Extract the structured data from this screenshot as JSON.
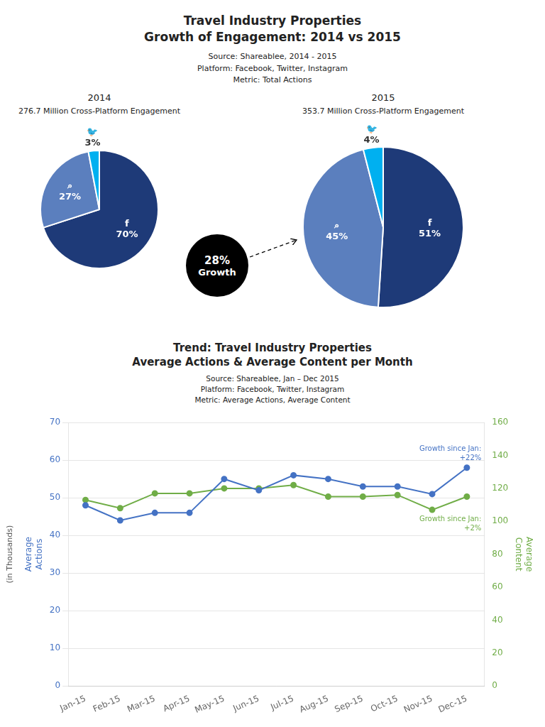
{
  "title": "Travel Industry Properties\nGrowth of Engagement: 2014 vs 2015",
  "subtitle": "Source: Shareablee, 2014 - 2015\nPlatform: Facebook, Twitter, Instagram\nMetric: Total Actions",
  "annotations": [
    "28%",
    "Growth"
  ],
  "chart_data": [
    {
      "type": "pie",
      "title": "2014",
      "subtitle": "276.7 Million Cross-Platform Engagement",
      "values": [
        70,
        27,
        3
      ],
      "colors": [
        "#1e3a78",
        "#5b7fbe",
        "#00b0f0"
      ],
      "data_labels": true,
      "value_labels": [
        "f\n70%",
        "⌕\n27%",
        "🐦\n3%"
      ]
    },
    {
      "type": "pie",
      "title": "2015",
      "subtitle": "353.7 Million Cross-Platform Engagement",
      "values": [
        51,
        45,
        4
      ],
      "colors": [
        "#1e3a78",
        "#5b7fbe",
        "#00b0f0"
      ],
      "data_labels": true,
      "value_labels": [
        "f\n51%",
        "⌕\n45%",
        "🐦\n4%"
      ]
    },
    {
      "type": "line",
      "title": "Trend: Travel Industry Properties\nAverage Actions & Average Content per Month",
      "subtitle": "Source: Shareablee, Jan – Dec 2015\nPlatform: Facebook, Twitter, Instagram\nMetric: Average Actions, Average Content",
      "categories": [
        "Jan-15",
        "Feb-15",
        "Mar-15",
        "Apr-15",
        "May-15",
        "Jun-15",
        "Jul-15",
        "Aug-15",
        "Sep-15",
        "Oct-15",
        "Nov-15",
        "Dec-15"
      ],
      "series": [
        {
          "color": "#4472c4",
          "marker": "circle",
          "values": [
            48,
            44,
            46,
            46,
            55,
            52,
            56,
            55,
            53,
            53,
            51,
            58
          ],
          "annotation": "Growth since Jan:\n+22%"
        },
        {
          "color": "#70ad47",
          "marker": "circle",
          "axis": "y2",
          "values": [
            113,
            108,
            117,
            117,
            120,
            120,
            122,
            115,
            115,
            116,
            107,
            115
          ],
          "annotation": "Growth since Jan:\n+2%"
        }
      ],
      "ylabel": "Average\nActions",
      "y2label": "Average\nContent",
      "annotations": [
        "(in Thousands)"
      ],
      "ylim": [
        0,
        70
      ],
      "yticks": [
        0,
        10,
        20,
        30,
        40,
        50,
        60,
        70
      ],
      "y2lim": [
        0,
        160
      ],
      "y2ticks": [
        0,
        20,
        40,
        60,
        80,
        100,
        120,
        140,
        160
      ],
      "grid": true
    }
  ]
}
